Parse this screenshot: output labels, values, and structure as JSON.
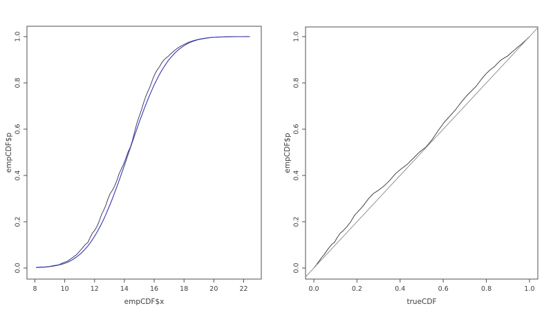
{
  "page": {
    "background": "#ffffff"
  },
  "colors": {
    "empirical": "#3a3a3a",
    "theoretical": "#3939cb",
    "reference": "#8c8c8c",
    "axis": "#4d4d4d",
    "text": "#3c3c3c"
  },
  "chart_data": [
    {
      "name": "ecdf-vs-fitted-normal-plot",
      "type": "line",
      "title": "",
      "xlabel": "empCDF$x",
      "ylabel": "empCDF$p",
      "xlim": [
        7.467,
        23.182
      ],
      "ylim": [
        -0.0478,
        1.0447
      ],
      "grid": false,
      "legend": null,
      "xticks": {
        "values": [
          8,
          10,
          12,
          14,
          16,
          18,
          20,
          22
        ],
        "labels": [
          "8",
          "10",
          "12",
          "14",
          "16",
          "18",
          "20",
          "22"
        ]
      },
      "yticks": {
        "values": [
          0,
          0.2,
          0.4,
          0.6,
          0.8,
          1.0
        ],
        "labels": [
          "0.0",
          "0.2",
          "0.4",
          "0.6",
          "0.8",
          "1.0"
        ]
      },
      "series": [
        {
          "name": "empirical-cdf-curve",
          "color_key": "empirical",
          "x": [
            8.1,
            8.4,
            8.7,
            9.0,
            9.3,
            9.6,
            9.9,
            10.2,
            10.5,
            10.8,
            11.1,
            11.4,
            11.55,
            11.7,
            11.85,
            12.0,
            12.15,
            12.3,
            12.45,
            12.6,
            12.75,
            12.9,
            13.05,
            13.2,
            13.35,
            13.5,
            13.65,
            13.8,
            13.95,
            14.1,
            14.25,
            14.4,
            14.55,
            14.7,
            14.85,
            15.0,
            15.15,
            15.3,
            15.45,
            15.6,
            15.75,
            15.9,
            16.05,
            16.2,
            16.35,
            16.5,
            16.65,
            16.8,
            16.95,
            17.1,
            17.4,
            17.7,
            18.0,
            18.3,
            18.6,
            18.9,
            19.2,
            19.5,
            19.8,
            20.1,
            20.4,
            20.7,
            21.0,
            21.3,
            21.6,
            21.9,
            22.2,
            22.4
          ],
          "y": [
            0.003,
            0.004,
            0.005,
            0.007,
            0.011,
            0.014,
            0.023,
            0.03,
            0.044,
            0.058,
            0.08,
            0.103,
            0.11,
            0.131,
            0.15,
            0.162,
            0.178,
            0.2,
            0.228,
            0.248,
            0.27,
            0.299,
            0.322,
            0.336,
            0.355,
            0.379,
            0.408,
            0.429,
            0.449,
            0.475,
            0.502,
            0.522,
            0.553,
            0.593,
            0.628,
            0.657,
            0.684,
            0.716,
            0.744,
            0.766,
            0.788,
            0.816,
            0.839,
            0.856,
            0.869,
            0.886,
            0.899,
            0.908,
            0.915,
            0.925,
            0.942,
            0.956,
            0.966,
            0.975,
            0.982,
            0.987,
            0.991,
            0.994,
            0.996,
            0.9972,
            0.9982,
            0.9988,
            0.9992,
            0.9995,
            0.9997,
            0.9998,
            0.9999,
            1.0
          ]
        },
        {
          "name": "fitted-normal-cdf-curve",
          "color_key": "theoretical",
          "x": [
            8.1,
            8.4,
            8.7,
            9.0,
            9.3,
            9.6,
            9.9,
            10.2,
            10.5,
            10.8,
            11.1,
            11.4,
            11.55,
            11.7,
            11.85,
            12.0,
            12.15,
            12.3,
            12.45,
            12.6,
            12.75,
            12.9,
            13.05,
            13.2,
            13.35,
            13.5,
            13.65,
            13.8,
            13.95,
            14.1,
            14.25,
            14.4,
            14.55,
            14.7,
            14.85,
            15.0,
            15.15,
            15.3,
            15.45,
            15.6,
            15.75,
            15.9,
            16.05,
            16.2,
            16.35,
            16.5,
            16.65,
            16.8,
            16.95,
            17.1,
            17.4,
            17.7,
            18.0,
            18.3,
            18.6,
            18.9,
            19.2,
            19.5,
            19.8,
            20.1,
            20.4,
            20.7,
            21.0,
            21.3,
            21.6,
            21.9,
            22.2,
            22.4
          ],
          "y": [
            0.002,
            0.003,
            0.004,
            0.006,
            0.009,
            0.013,
            0.018,
            0.025,
            0.035,
            0.048,
            0.064,
            0.084,
            0.095,
            0.108,
            0.122,
            0.137,
            0.153,
            0.171,
            0.189,
            0.209,
            0.23,
            0.253,
            0.276,
            0.3,
            0.326,
            0.352,
            0.379,
            0.406,
            0.434,
            0.462,
            0.491,
            0.519,
            0.547,
            0.576,
            0.603,
            0.631,
            0.657,
            0.683,
            0.708,
            0.732,
            0.755,
            0.777,
            0.798,
            0.817,
            0.836,
            0.853,
            0.868,
            0.883,
            0.897,
            0.909,
            0.93,
            0.947,
            0.961,
            0.972,
            0.98,
            0.986,
            0.99,
            0.993,
            0.996,
            0.997,
            0.998,
            0.999,
            0.9993,
            0.9996,
            0.9997,
            0.9998,
            0.9999,
            1.0
          ]
        }
      ]
    },
    {
      "name": "pp-plot",
      "type": "line",
      "title": "",
      "xlabel": "trueCDF",
      "ylabel": "empCDF$p",
      "xlim": [
        -0.0385,
        1.0385
      ],
      "ylim": [
        -0.0478,
        1.0418
      ],
      "grid": false,
      "legend": null,
      "xticks": {
        "values": [
          0,
          0.2,
          0.4,
          0.6,
          0.8,
          1.0
        ],
        "labels": [
          "0.0",
          "0.2",
          "0.4",
          "0.6",
          "0.8",
          "1.0"
        ]
      },
      "yticks": {
        "values": [
          0,
          0.2,
          0.4,
          0.6,
          0.8,
          1.0
        ],
        "labels": [
          "0.0",
          "0.2",
          "0.4",
          "0.6",
          "0.8",
          "1.0"
        ]
      },
      "series": [
        {
          "name": "pp-curve",
          "color_key": "empirical",
          "x": [
            0.002,
            0.003,
            0.004,
            0.006,
            0.009,
            0.013,
            0.018,
            0.025,
            0.035,
            0.048,
            0.064,
            0.084,
            0.095,
            0.108,
            0.122,
            0.137,
            0.153,
            0.171,
            0.189,
            0.209,
            0.23,
            0.253,
            0.276,
            0.3,
            0.326,
            0.352,
            0.379,
            0.406,
            0.434,
            0.462,
            0.491,
            0.519,
            0.547,
            0.576,
            0.603,
            0.631,
            0.657,
            0.683,
            0.708,
            0.732,
            0.755,
            0.777,
            0.798,
            0.817,
            0.836,
            0.853,
            0.868,
            0.883,
            0.897,
            0.909,
            0.93,
            0.947,
            0.961,
            0.972,
            0.98,
            0.986,
            0.99,
            0.993,
            0.996,
            0.997,
            0.998,
            0.999,
            0.9993,
            0.9996,
            0.9997,
            0.9998,
            0.9999,
            1.0
          ],
          "y": [
            0.003,
            0.004,
            0.005,
            0.007,
            0.011,
            0.014,
            0.023,
            0.03,
            0.044,
            0.058,
            0.08,
            0.103,
            0.11,
            0.131,
            0.15,
            0.162,
            0.178,
            0.2,
            0.228,
            0.248,
            0.27,
            0.299,
            0.322,
            0.336,
            0.355,
            0.379,
            0.408,
            0.429,
            0.449,
            0.475,
            0.502,
            0.522,
            0.553,
            0.593,
            0.628,
            0.657,
            0.684,
            0.716,
            0.744,
            0.766,
            0.788,
            0.816,
            0.839,
            0.856,
            0.869,
            0.886,
            0.899,
            0.908,
            0.915,
            0.925,
            0.942,
            0.956,
            0.966,
            0.975,
            0.982,
            0.987,
            0.991,
            0.994,
            0.996,
            0.9972,
            0.9982,
            0.9988,
            0.9992,
            0.9995,
            0.9997,
            0.9998,
            0.9999,
            1.0
          ]
        },
        {
          "name": "identity-reference-line",
          "color_key": "reference",
          "x": [
            -0.0385,
            1.0385
          ],
          "y": [
            -0.0385,
            1.0385
          ]
        }
      ]
    }
  ]
}
